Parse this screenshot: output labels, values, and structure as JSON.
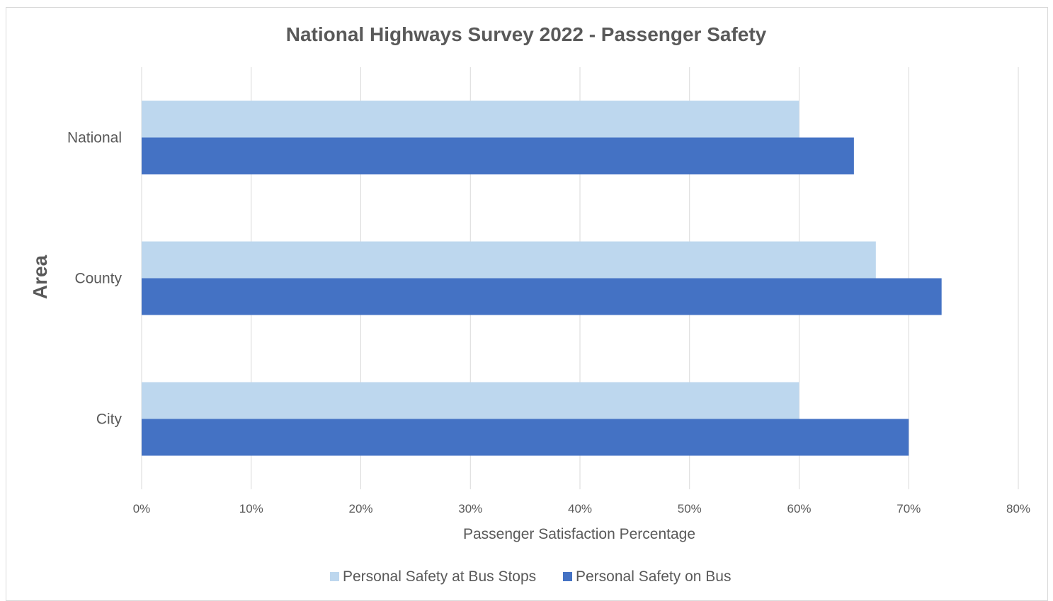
{
  "chart_data": {
    "type": "bar",
    "orientation": "horizontal",
    "title": "National  Highways Survey 2022 - Passenger  Safety",
    "xlabel": "Passenger Satisfaction Percentage",
    "ylabel": "Area",
    "categories": [
      "National",
      "County",
      "City"
    ],
    "series": [
      {
        "name": "Personal Safety at Bus Stops",
        "color": "#BDD7EE",
        "values": [
          60,
          67,
          60
        ]
      },
      {
        "name": "Personal Safety on Bus",
        "color": "#4472C4",
        "values": [
          65,
          73,
          70
        ]
      }
    ],
    "xlim": [
      0,
      80
    ],
    "xticks": [
      0,
      10,
      20,
      30,
      40,
      50,
      60,
      70,
      80
    ],
    "xtick_labels": [
      "0%",
      "10%",
      "20%",
      "30%",
      "40%",
      "50%",
      "60%",
      "70%",
      "80%"
    ],
    "grid": true,
    "legend_position": "bottom"
  }
}
